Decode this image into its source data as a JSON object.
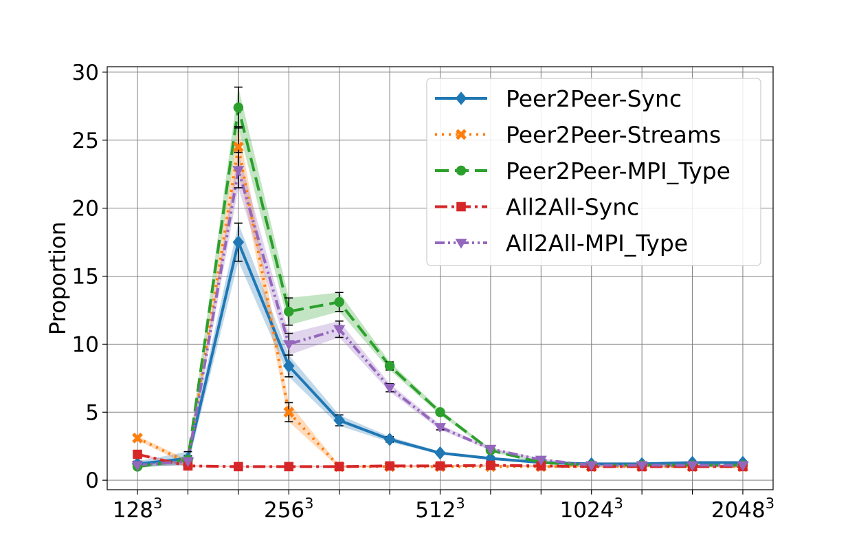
{
  "chart_data": {
    "type": "line",
    "title": "",
    "xlabel": "",
    "ylabel": "Proportion",
    "ylim": [
      -0.7,
      30.4
    ],
    "xlim": [
      -0.6,
      12.6
    ],
    "yticks": [
      0,
      5,
      10,
      15,
      20,
      25,
      30
    ],
    "ytick_labels": [
      "0",
      "5",
      "10",
      "15",
      "20",
      "25",
      "30"
    ],
    "xticks_all": [
      0,
      1,
      2,
      3,
      4,
      5,
      6,
      7,
      8,
      9,
      10,
      11,
      12
    ],
    "xtick_labels": [
      {
        "pos": 0,
        "base": "128",
        "exp": "3"
      },
      {
        "pos": 3,
        "base": "256",
        "exp": "3"
      },
      {
        "pos": 6,
        "base": "512",
        "exp": "3"
      },
      {
        "pos": 9,
        "base": "1024",
        "exp": "3"
      },
      {
        "pos": 12,
        "base": "2048",
        "exp": "3"
      }
    ],
    "grid": true,
    "legend_position": "top-right",
    "series": [
      {
        "name": "Peer2Peer-Sync",
        "color": "#1f77b4",
        "dash": "",
        "marker": "diamond",
        "x": [
          0,
          1,
          2,
          3,
          4,
          5,
          6,
          7,
          8,
          9,
          10,
          11,
          12
        ],
        "values": [
          1.2,
          1.6,
          17.5,
          8.4,
          4.4,
          3.0,
          2.0,
          1.6,
          1.3,
          1.2,
          1.2,
          1.3,
          1.3
        ],
        "err": [
          0.2,
          0.5,
          1.4,
          0.8,
          0.4,
          0.2,
          0.1,
          0.1,
          0.1,
          0.05,
          0.05,
          0.05,
          0.05
        ]
      },
      {
        "name": "Peer2Peer-Streams",
        "color": "#ff7f0e",
        "dash": "3,7",
        "marker": "x",
        "x": [
          0,
          1,
          2,
          3,
          4,
          5,
          6,
          7,
          8,
          9,
          10,
          11,
          12
        ],
        "values": [
          3.1,
          1.3,
          24.5,
          5.0,
          1.0,
          1.0,
          1.0,
          1.0,
          1.0,
          1.0,
          1.0,
          1.0,
          1.0
        ],
        "err": [
          0.15,
          0.2,
          1.5,
          0.7,
          0.1,
          0.05,
          0.05,
          0.05,
          0.05,
          0.05,
          0.05,
          0.05,
          0.05
        ]
      },
      {
        "name": "Peer2Peer-MPI_Type",
        "color": "#2ca02c",
        "dash": "20,9",
        "marker": "circle",
        "x": [
          0,
          1,
          2,
          3,
          4,
          5,
          6,
          7,
          8,
          9,
          10,
          11,
          12
        ],
        "values": [
          1.0,
          1.5,
          27.4,
          12.4,
          13.1,
          8.4,
          5.0,
          2.2,
          1.3,
          1.1,
          1.1,
          1.1,
          1.1
        ],
        "err": [
          0.1,
          0.3,
          1.5,
          1.0,
          0.7,
          0.3,
          0.2,
          0.1,
          0.1,
          0.05,
          0.05,
          0.05,
          0.05
        ]
      },
      {
        "name": "All2All-Sync",
        "color": "#d62728",
        "dash": "18,6,4,6",
        "marker": "square",
        "x": [
          0,
          1,
          2,
          3,
          4,
          5,
          6,
          7,
          8,
          9,
          10,
          11,
          12
        ],
        "values": [
          1.9,
          1.05,
          1.0,
          1.0,
          1.0,
          1.05,
          1.05,
          1.1,
          1.05,
          1.0,
          1.0,
          1.0,
          1.0
        ],
        "err": [
          0.1,
          0.05,
          0.05,
          0.05,
          0.05,
          0.05,
          0.05,
          0.05,
          0.05,
          0.05,
          0.05,
          0.05,
          0.05
        ]
      },
      {
        "name": "All2All-MPI_Type",
        "color": "#9467bd",
        "dash": "14,5,3,5,3,5",
        "marker": "triangle-down",
        "x": [
          0,
          1,
          2,
          3,
          4,
          5,
          6,
          7,
          8,
          9,
          10,
          11,
          12
        ],
        "values": [
          1.1,
          1.4,
          22.8,
          10.0,
          11.1,
          6.8,
          3.9,
          2.3,
          1.5,
          1.1,
          1.1,
          1.1,
          1.1
        ],
        "err": [
          0.1,
          0.3,
          1.3,
          0.8,
          0.6,
          0.3,
          0.2,
          0.1,
          0.1,
          0.05,
          0.05,
          0.05,
          0.05
        ]
      }
    ]
  }
}
